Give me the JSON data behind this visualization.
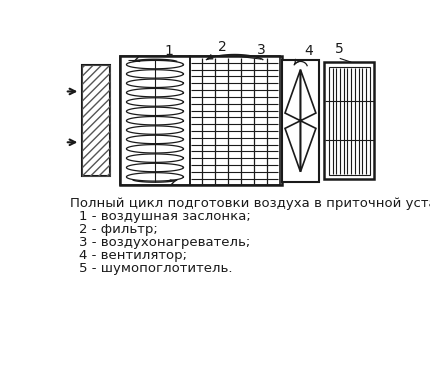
{
  "title_line": "Полный цикл подготовки воздуха в приточной установке:",
  "legend_items": [
    "1 - воздушная заслонка;",
    "2 - фильтр;",
    "3 - воздухонагреватель;",
    "4 - вентилятор;",
    "5 - шумопоглотитель."
  ],
  "bg_color": "#ffffff",
  "line_color": "#1a1a1a",
  "text_color": "#1a1a1a",
  "font_size_legend": 9.5,
  "font_size_numbers": 10
}
